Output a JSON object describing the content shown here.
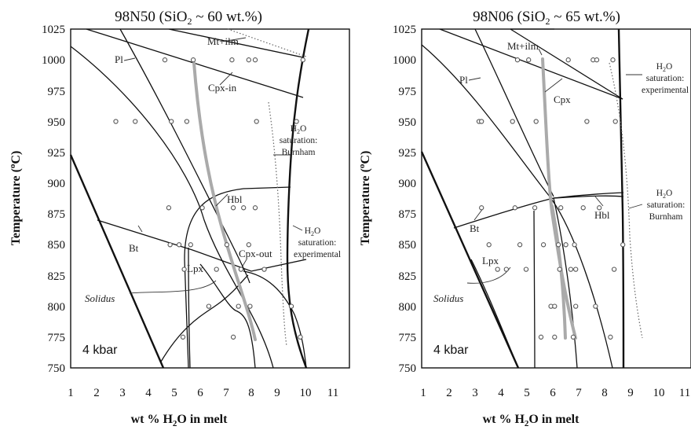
{
  "chart_data": [
    {
      "type": "scatter",
      "title_main": "98N50 (SiO",
      "title_sub": "2",
      "title_rest": " ~ 60 wt.%)",
      "xlabel_main": "wt % H",
      "xlabel_sub": "2",
      "xlabel_rest": "O in melt",
      "ylabel_main": "Temperature (",
      "ylabel_sup": "o",
      "ylabel_rest": "C)",
      "xlim": [
        1,
        11.8
      ],
      "ylim": [
        750,
        1025
      ],
      "xticks": [
        "1",
        "2",
        "3",
        "4",
        "5",
        "6",
        "7",
        "8",
        "9",
        "10",
        "11"
      ],
      "yticks": [
        "750",
        "775",
        "800",
        "825",
        "850",
        "875",
        "900",
        "925",
        "950",
        "975",
        "1000",
        "1025"
      ],
      "pressure": "4 kbar",
      "labels": {
        "mt_ilm": "Mt+ilm",
        "pl": "Pl",
        "cpx_in": "Cpx-in",
        "h2o_sat_main": "H",
        "h2o_sat_sub": "2",
        "h2o_sat_rest": "O",
        "h2o_burnham_1": "saturation:",
        "h2o_burnham_2": "Burnham",
        "hbl": "Hbl",
        "h2o_exp_1": "saturation:",
        "h2o_exp_2": "experimental",
        "bt": "Bt",
        "cpx_out": "Cpx-out",
        "lpx": "Lpx",
        "solidus": "Solidus"
      },
      "points": [
        {
          "x": 4.65,
          "y": 1000
        },
        {
          "x": 5.75,
          "y": 1000
        },
        {
          "x": 7.25,
          "y": 1000
        },
        {
          "x": 7.9,
          "y": 1000
        },
        {
          "x": 8.15,
          "y": 1000
        },
        {
          "x": 10,
          "y": 1000
        },
        {
          "x": 2.75,
          "y": 950
        },
        {
          "x": 3.5,
          "y": 950
        },
        {
          "x": 4.9,
          "y": 950
        },
        {
          "x": 5.5,
          "y": 950
        },
        {
          "x": 8.2,
          "y": 950
        },
        {
          "x": 9.75,
          "y": 950
        },
        {
          "x": 4.8,
          "y": 880
        },
        {
          "x": 6.1,
          "y": 880
        },
        {
          "x": 7.3,
          "y": 880
        },
        {
          "x": 7.7,
          "y": 880
        },
        {
          "x": 8.15,
          "y": 880
        },
        {
          "x": 4.85,
          "y": 850
        },
        {
          "x": 5.2,
          "y": 850
        },
        {
          "x": 5.65,
          "y": 850
        },
        {
          "x": 7.05,
          "y": 850
        },
        {
          "x": 7.9,
          "y": 850
        },
        {
          "x": 5.4,
          "y": 830
        },
        {
          "x": 6.65,
          "y": 830
        },
        {
          "x": 7.6,
          "y": 830
        },
        {
          "x": 8.5,
          "y": 830
        },
        {
          "x": 6.35,
          "y": 800
        },
        {
          "x": 7.5,
          "y": 800
        },
        {
          "x": 7.95,
          "y": 800
        },
        {
          "x": 9.55,
          "y": 800
        },
        {
          "x": 5.35,
          "y": 775
        },
        {
          "x": 7.3,
          "y": 775
        },
        {
          "x": 9.9,
          "y": 775
        }
      ]
    },
    {
      "type": "scatter",
      "title_main": "98N06 (SiO",
      "title_sub": "2",
      "title_rest": " ~ 65 wt.%)",
      "xlabel_main": "wt % H",
      "xlabel_sub": "2",
      "xlabel_rest": "O in melt",
      "ylabel_main": "Temperature (",
      "ylabel_sup": "o",
      "ylabel_rest": "C)",
      "xlim": [
        1,
        11.8
      ],
      "ylim": [
        750,
        1025
      ],
      "xticks": [
        "1",
        "2",
        "3",
        "4",
        "5",
        "6",
        "7",
        "8",
        "9",
        "10",
        "11"
      ],
      "yticks": [
        "750",
        "775",
        "800",
        "825",
        "850",
        "875",
        "900",
        "925",
        "950",
        "975",
        "1000",
        "1025"
      ],
      "pressure": "4 kbar",
      "labels": {
        "mt_ilm": "Mt+ilm",
        "pl": "Pl",
        "cpx": "Cpx",
        "h2o_sat_main": "H",
        "h2o_sat_sub": "2",
        "h2o_sat_rest": "O",
        "h2o_exp_1": "saturation:",
        "h2o_exp_2": "experimental",
        "h2o_burnham_1": "saturation:",
        "h2o_burnham_2": "Burnham",
        "bt": "Bt",
        "hbl": "Hbl",
        "lpx": "Lpx",
        "solidus": "Solidus"
      },
      "points": [
        {
          "x": 4.8,
          "y": 1000
        },
        {
          "x": 5.25,
          "y": 1000
        },
        {
          "x": 6.85,
          "y": 1000
        },
        {
          "x": 7.85,
          "y": 1000
        },
        {
          "x": 8,
          "y": 1000
        },
        {
          "x": 8.65,
          "y": 1000
        },
        {
          "x": 3.25,
          "y": 950
        },
        {
          "x": 3.35,
          "y": 950
        },
        {
          "x": 4.6,
          "y": 950
        },
        {
          "x": 5.55,
          "y": 950
        },
        {
          "x": 7.6,
          "y": 950
        },
        {
          "x": 8.75,
          "y": 950
        },
        {
          "x": 3.35,
          "y": 880
        },
        {
          "x": 4.7,
          "y": 880
        },
        {
          "x": 5.5,
          "y": 880
        },
        {
          "x": 6.55,
          "y": 880
        },
        {
          "x": 7.45,
          "y": 880
        },
        {
          "x": 8.1,
          "y": 880
        },
        {
          "x": 3.65,
          "y": 850
        },
        {
          "x": 4.9,
          "y": 850
        },
        {
          "x": 5.85,
          "y": 850
        },
        {
          "x": 6.45,
          "y": 850
        },
        {
          "x": 6.75,
          "y": 850
        },
        {
          "x": 7.1,
          "y": 850
        },
        {
          "x": 9.05,
          "y": 850
        },
        {
          "x": 4,
          "y": 830
        },
        {
          "x": 4.35,
          "y": 830
        },
        {
          "x": 5.15,
          "y": 830
        },
        {
          "x": 6.5,
          "y": 830
        },
        {
          "x": 6.95,
          "y": 830
        },
        {
          "x": 7.15,
          "y": 830
        },
        {
          "x": 8.7,
          "y": 830
        },
        {
          "x": 6.15,
          "y": 800
        },
        {
          "x": 6.3,
          "y": 800
        },
        {
          "x": 7.15,
          "y": 800
        },
        {
          "x": 7.95,
          "y": 800
        },
        {
          "x": 5.75,
          "y": 775
        },
        {
          "x": 6.3,
          "y": 775
        },
        {
          "x": 7.05,
          "y": 775
        },
        {
          "x": 8.55,
          "y": 775
        }
      ]
    }
  ]
}
